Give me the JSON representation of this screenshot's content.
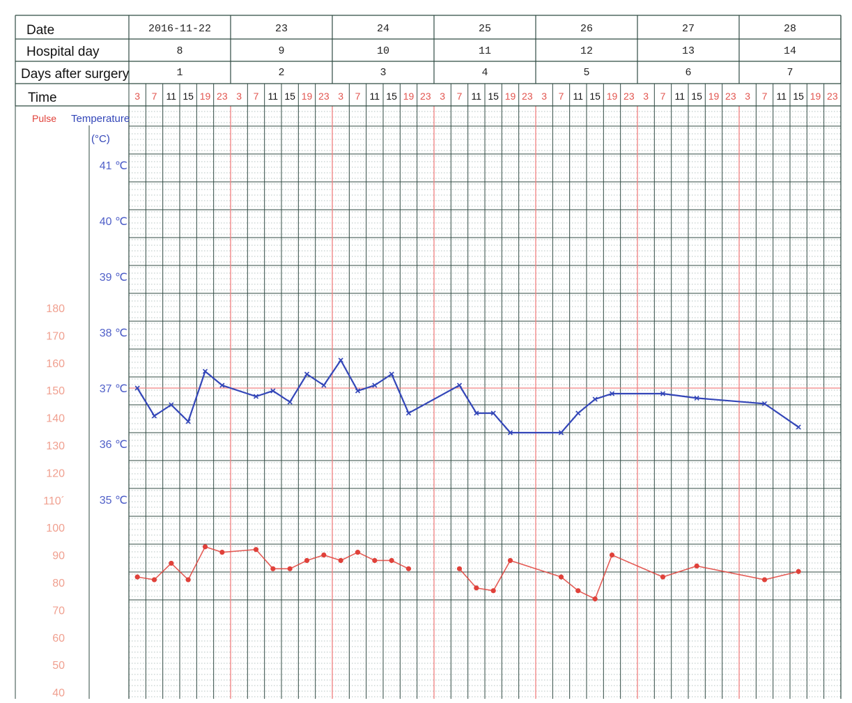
{
  "header": {
    "date_label": "Date",
    "hospital_day_label": "Hospital day",
    "days_after_surgery_label": "Days after surgery",
    "time_label": "Time",
    "dates": [
      "2016-11-22",
      "23",
      "24",
      "25",
      "26",
      "27",
      "28"
    ],
    "hospital_days": [
      "8",
      "9",
      "10",
      "11",
      "12",
      "13",
      "14"
    ],
    "days_after_surgery": [
      "1",
      "2",
      "3",
      "4",
      "5",
      "6",
      "7"
    ],
    "time_slots": [
      "3",
      "7",
      "11",
      "15",
      "19",
      "23"
    ]
  },
  "legend": {
    "pulse": "Pulse",
    "temperature": "Temperature",
    "temperature_unit": "(°C)"
  },
  "colors": {
    "pulse": "#e0413a",
    "temperature": "#3346b8",
    "grid": "#2f4a42",
    "day_divider": "#f08080",
    "red_time": "#e2554f",
    "pulse_axis": "#f0a090",
    "temp_axis": "#4f5fc8"
  },
  "chart_data": {
    "type": "line",
    "temperature_axis": {
      "ticks": [
        {
          "value": 41,
          "label": "41 ℃"
        },
        {
          "value": 40,
          "label": "40 ℃"
        },
        {
          "value": 39,
          "label": "39 ℃"
        },
        {
          "value": 38,
          "label": "38 ℃"
        },
        {
          "value": 37,
          "label": "37 ℃"
        },
        {
          "value": 36,
          "label": "36 ℃"
        },
        {
          "value": 35,
          "label": "35 ℃"
        }
      ]
    },
    "pulse_axis": {
      "ticks": [
        {
          "value": 180,
          "label": "180"
        },
        {
          "value": 170,
          "label": "170"
        },
        {
          "value": 160,
          "label": "160"
        },
        {
          "value": 150,
          "label": "150"
        },
        {
          "value": 140,
          "label": "140"
        },
        {
          "value": 130,
          "label": "130"
        },
        {
          "value": 120,
          "label": "120"
        },
        {
          "value": 110,
          "label": "110´"
        },
        {
          "value": 100,
          "label": "100"
        },
        {
          "value": 90,
          "label": "90"
        },
        {
          "value": 80,
          "label": "80"
        },
        {
          "value": 70,
          "label": "70"
        },
        {
          "value": 60,
          "label": "60"
        },
        {
          "value": 50,
          "label": "50"
        },
        {
          "value": 40,
          "label": "40"
        }
      ]
    },
    "reference_line": {
      "axis": "temperature",
      "value": 37
    },
    "series": [
      {
        "name": "Temperature",
        "axis": "temperature",
        "points": [
          {
            "slot": 0,
            "value": 37.0
          },
          {
            "slot": 1,
            "value": 36.5
          },
          {
            "slot": 2,
            "value": 36.7
          },
          {
            "slot": 3,
            "value": 36.4
          },
          {
            "slot": 4,
            "value": 37.3
          },
          {
            "slot": 5,
            "value": 37.05
          },
          {
            "slot": 7,
            "value": 36.85
          },
          {
            "slot": 8,
            "value": 36.95
          },
          {
            "slot": 9,
            "value": 36.75
          },
          {
            "slot": 10,
            "value": 37.25
          },
          {
            "slot": 11,
            "value": 37.05
          },
          {
            "slot": 12,
            "value": 37.5
          },
          {
            "slot": 13,
            "value": 36.95
          },
          {
            "slot": 14,
            "value": 37.05
          },
          {
            "slot": 15,
            "value": 37.25
          },
          {
            "slot": 16,
            "value": 36.55
          },
          {
            "slot": 19,
            "value": 37.05
          },
          {
            "slot": 20,
            "value": 36.55
          },
          {
            "slot": 21,
            "value": 36.55
          },
          {
            "slot": 22,
            "value": 36.2
          },
          {
            "slot": 25,
            "value": 36.2
          },
          {
            "slot": 26,
            "value": 36.55
          },
          {
            "slot": 27,
            "value": 36.8
          },
          {
            "slot": 28,
            "value": 36.9
          },
          {
            "slot": 31,
            "value": 36.9
          },
          {
            "slot": 33,
            "value": 36.82
          },
          {
            "slot": 37,
            "value": 36.72
          },
          {
            "slot": 39,
            "value": 36.3
          }
        ]
      },
      {
        "name": "Pulse",
        "axis": "pulse",
        "points": [
          {
            "slot": 0,
            "value": 82
          },
          {
            "slot": 1,
            "value": 81
          },
          {
            "slot": 2,
            "value": 87
          },
          {
            "slot": 3,
            "value": 81
          },
          {
            "slot": 4,
            "value": 93
          },
          {
            "slot": 5,
            "value": 91
          },
          {
            "slot": 7,
            "value": 92
          },
          {
            "slot": 8,
            "value": 85
          },
          {
            "slot": 9,
            "value": 85
          },
          {
            "slot": 10,
            "value": 88
          },
          {
            "slot": 11,
            "value": 90
          },
          {
            "slot": 12,
            "value": 88
          },
          {
            "slot": 13,
            "value": 91
          },
          {
            "slot": 14,
            "value": 88
          },
          {
            "slot": 15,
            "value": 88
          },
          {
            "slot": 16,
            "value": 85
          },
          {
            "slot": 19,
            "value": 85
          },
          {
            "slot": 20,
            "value": 78
          },
          {
            "slot": 21,
            "value": 77
          },
          {
            "slot": 22,
            "value": 88
          },
          {
            "slot": 25,
            "value": 82
          },
          {
            "slot": 26,
            "value": 77
          },
          {
            "slot": 27,
            "value": 74
          },
          {
            "slot": 28,
            "value": 90
          },
          {
            "slot": 31,
            "value": 82
          },
          {
            "slot": 33,
            "value": 86
          },
          {
            "slot": 37,
            "value": 81
          },
          {
            "slot": 39,
            "value": 84
          }
        ]
      }
    ]
  }
}
